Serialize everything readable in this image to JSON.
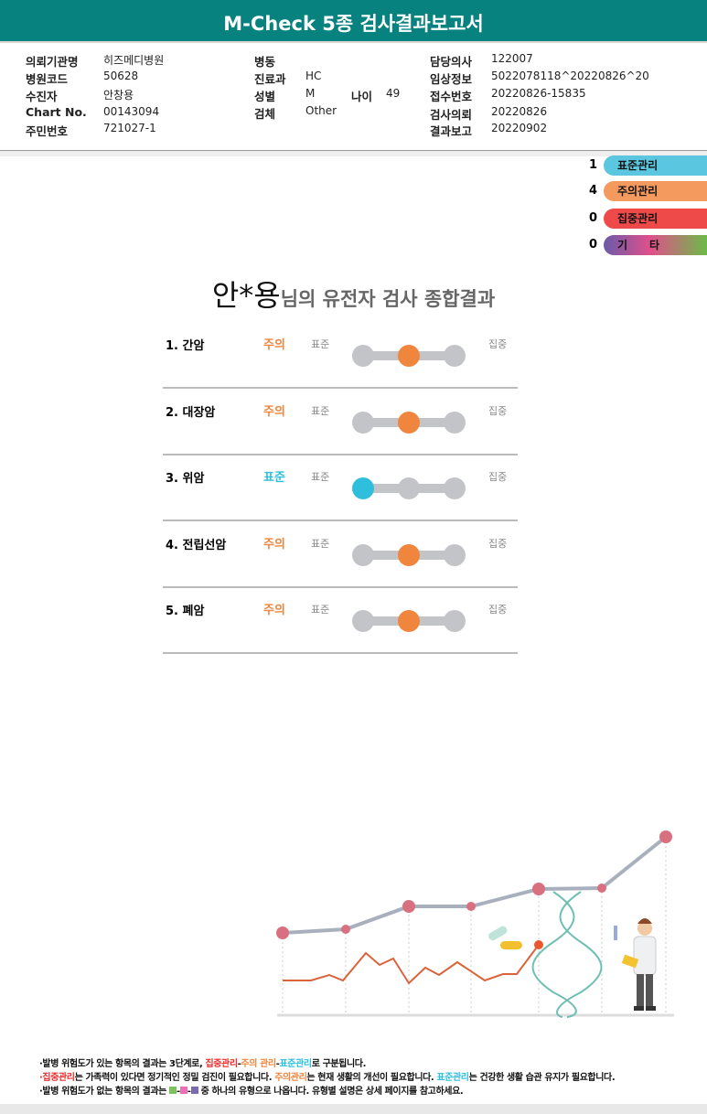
{
  "header": {
    "title": "M-Check 5종 검사결과보고서"
  },
  "info": {
    "col1": [
      {
        "label": "의뢰기관명",
        "value": "히즈메디병원"
      },
      {
        "label": "병원코드",
        "value": "50628"
      },
      {
        "label": "수진자",
        "value": "안창용"
      },
      {
        "label": "Chart No.",
        "value": "00143094"
      },
      {
        "label": "주민번호",
        "value": "721027-1"
      }
    ],
    "col2": [
      {
        "label": "병동",
        "value": ""
      },
      {
        "label": "진료과",
        "value": "HC"
      },
      {
        "label": "성별",
        "value": "M"
      },
      {
        "label": "검체",
        "value": "Other"
      }
    ],
    "age": {
      "label": "나이",
      "value": "49"
    },
    "col3": [
      {
        "label": "담당의사",
        "value": "122007"
      },
      {
        "label": "임상정보",
        "value": "5022078118^20220826^20"
      },
      {
        "label": "접수번호",
        "value": "20220826-15835"
      },
      {
        "label": "검사의뢰",
        "value": "20220826"
      },
      {
        "label": "결과보고",
        "value": "20220902"
      }
    ]
  },
  "legend": [
    {
      "count": "1",
      "label": "표준관리",
      "color": "#5bc6df"
    },
    {
      "count": "4",
      "label": "주의관리",
      "color": "#f59a5e"
    },
    {
      "count": "0",
      "label": "집중관리",
      "color": "#ee4a4a"
    },
    {
      "count": "0",
      "label": "기　　타",
      "color": "gradient"
    }
  ],
  "summary": {
    "name": "안*용",
    "suffix": "님의 유전자 검사 종합결과"
  },
  "scale": {
    "low": "표준",
    "high": "집중"
  },
  "results": [
    {
      "name": "1.  간암",
      "status": "주의",
      "level": 2
    },
    {
      "name": "2.  대장암",
      "status": "주의",
      "level": 2
    },
    {
      "name": "3.  위암",
      "status": "표준",
      "level": 1
    },
    {
      "name": "4.  전립선암",
      "status": "주의",
      "level": 2
    },
    {
      "name": "5.  폐암",
      "status": "주의",
      "level": 2
    }
  ],
  "colors": {
    "header": "#07827f",
    "standard": "#2fbedc",
    "caution": "#f0863e",
    "intensive": "#ee3b3b",
    "track": "#c3c4c8"
  },
  "footer": {
    "line1": {
      "a": "·발병 위험도가 있는 항목의 결과는 3단계로, ",
      "b": "집중관리",
      "c": "-",
      "d": "주의 관리",
      "e": "-",
      "f": "표준관리",
      "g": "로 구분됩니다."
    },
    "line2": {
      "a": "·",
      "b": "집중관리",
      "c": "는 가족력이 있다면 정기적인 정밀 검진이 필요합니다. ",
      "d": "주의관리",
      "e": "는 현재 생활의 개선이 필요합니다. ",
      "f": "표준관리",
      "g": "는 건강한 생활 습관 유지가 필요합니다."
    },
    "line3": {
      "a": "·발병 위험도가 없는 항목의 결과는 ",
      "b": " 중 하나의 유형으로 나옵니다. 유형별 설명은 상세 페이지를 참고하세요."
    }
  }
}
